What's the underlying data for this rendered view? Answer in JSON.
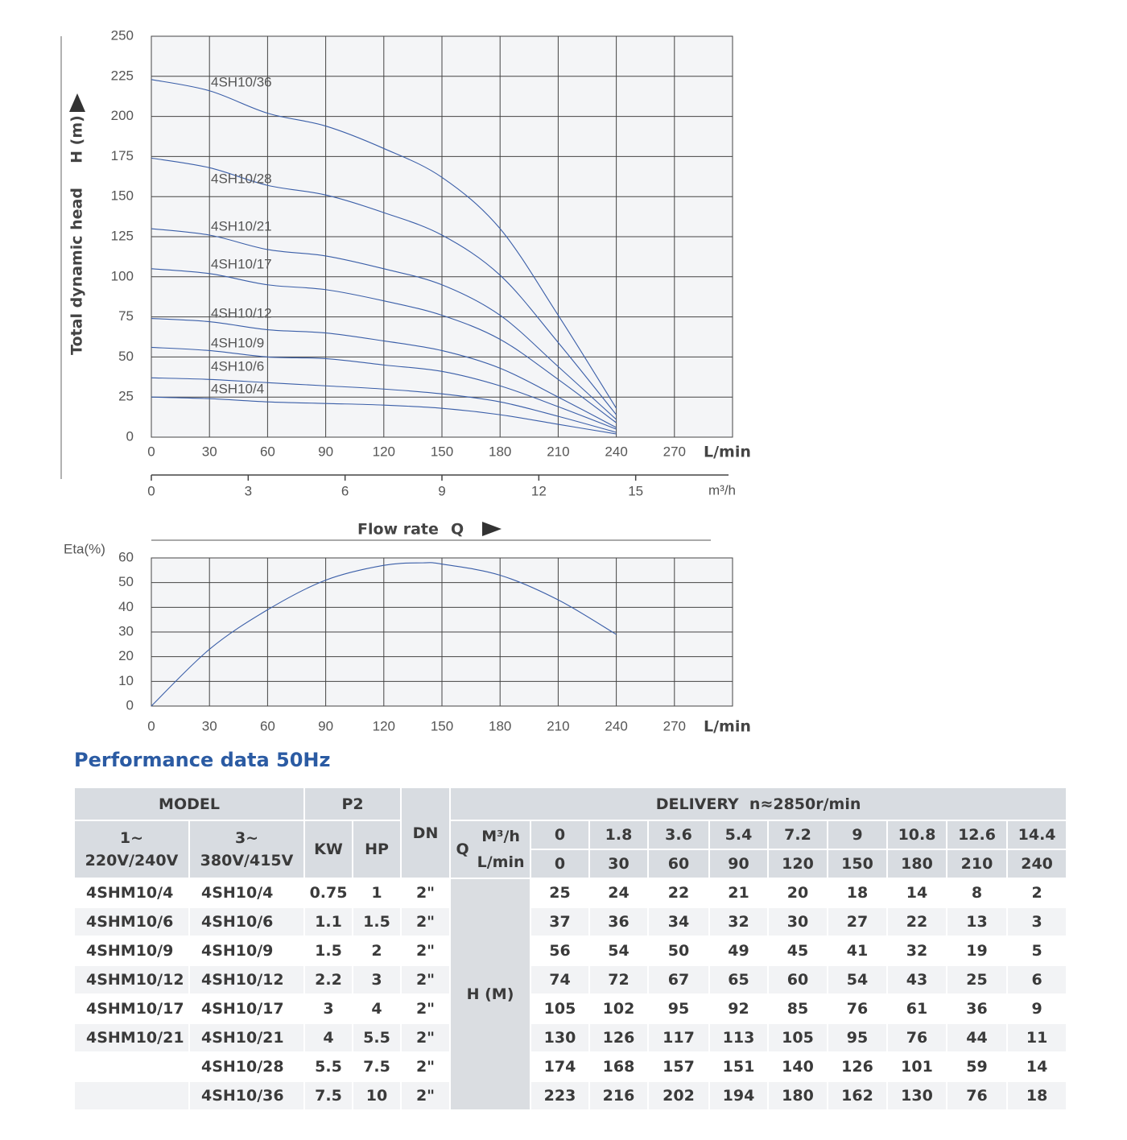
{
  "chart_data": [
    {
      "type": "line",
      "ylabel": "Total dynamic head",
      "ylabel_unit": "H (m)",
      "xlabel": "L/min",
      "x2label": "m³/h",
      "flow_label": "Flow rate",
      "flow_symbol": "Q",
      "xlim": [
        0,
        300
      ],
      "xticks": [
        0,
        30,
        60,
        90,
        120,
        150,
        180,
        210,
        240,
        270
      ],
      "x2lim": [
        0,
        18
      ],
      "x2ticks": [
        0,
        3,
        6,
        9,
        12,
        15
      ],
      "ylim": [
        0,
        250
      ],
      "yticks": [
        0,
        25,
        50,
        75,
        100,
        125,
        150,
        175,
        200,
        225,
        250
      ],
      "grid": true,
      "x": [
        0,
        30,
        60,
        90,
        120,
        150,
        180,
        210,
        240
      ],
      "series": [
        {
          "name": "4SH10/4",
          "color": "#3a5ea8",
          "values": [
            25,
            24,
            22,
            21,
            20,
            18,
            14,
            8,
            2
          ]
        },
        {
          "name": "4SH10/6",
          "color": "#3a5ea8",
          "values": [
            37,
            36,
            34,
            32,
            30,
            27,
            22,
            13,
            3
          ]
        },
        {
          "name": "4SH10/9",
          "color": "#3a5ea8",
          "values": [
            56,
            54,
            50,
            49,
            45,
            41,
            32,
            19,
            5
          ]
        },
        {
          "name": "4SH10/12",
          "color": "#3a5ea8",
          "values": [
            74,
            72,
            67,
            65,
            60,
            54,
            43,
            25,
            6
          ]
        },
        {
          "name": "4SH10/17",
          "color": "#3a5ea8",
          "values": [
            105,
            102,
            95,
            92,
            85,
            76,
            61,
            36,
            9
          ]
        },
        {
          "name": "4SH10/21",
          "color": "#3a5ea8",
          "values": [
            130,
            126,
            117,
            113,
            105,
            95,
            76,
            44,
            11
          ]
        },
        {
          "name": "4SH10/28",
          "color": "#3a5ea8",
          "values": [
            174,
            168,
            157,
            151,
            140,
            126,
            101,
            59,
            14
          ]
        },
        {
          "name": "4SH10/36",
          "color": "#3a5ea8",
          "values": [
            223,
            216,
            202,
            194,
            180,
            162,
            130,
            76,
            18
          ]
        }
      ]
    },
    {
      "type": "line",
      "ylabel": "Eta(%)",
      "xlabel": "L/min",
      "xlim": [
        0,
        300
      ],
      "xticks": [
        0,
        30,
        60,
        90,
        120,
        150,
        180,
        210,
        240,
        270
      ],
      "ylim": [
        0,
        60
      ],
      "yticks": [
        0,
        10,
        20,
        30,
        40,
        50,
        60
      ],
      "grid": true,
      "x": [
        0,
        30,
        60,
        90,
        120,
        140,
        150,
        180,
        210,
        240
      ],
      "series": [
        {
          "color": "#3a5ea8",
          "values": [
            0,
            23,
            39,
            51,
            57,
            58,
            57.5,
            53,
            43,
            29
          ]
        }
      ]
    }
  ],
  "table": {
    "title": "Performance data 50Hz",
    "header": {
      "model": "MODEL",
      "p2": "P2",
      "dn": "DN",
      "delivery": "DELIVERY  n≈2850r/min",
      "phase1": "1~",
      "voltage1": "220V/240V",
      "phase3": "3~",
      "voltage3": "380V/415V",
      "kw": "KW",
      "hp": "HP",
      "q": "Q",
      "m3h": "M³/h",
      "lmin": "L/min",
      "flow_m3h": [
        0,
        1.8,
        3.6,
        5.4,
        7.2,
        9,
        10.8,
        12.6,
        14.4
      ],
      "flow_lmin": [
        0,
        30,
        60,
        90,
        120,
        150,
        180,
        210,
        240
      ]
    },
    "h_label": "H (M)",
    "rows": [
      {
        "model_1ph": "4SHM10/4",
        "model_3ph": "4SH10/4",
        "kw": 0.75,
        "hp": 1,
        "dn": "2\"",
        "h": [
          25,
          24,
          22,
          21,
          20,
          18,
          14,
          8,
          2
        ]
      },
      {
        "model_1ph": "4SHM10/6",
        "model_3ph": "4SH10/6",
        "kw": 1.1,
        "hp": 1.5,
        "dn": "2\"",
        "h": [
          37,
          36,
          34,
          32,
          30,
          27,
          22,
          13,
          3
        ]
      },
      {
        "model_1ph": "4SHM10/9",
        "model_3ph": "4SH10/9",
        "kw": 1.5,
        "hp": 2,
        "dn": "2\"",
        "h": [
          56,
          54,
          50,
          49,
          45,
          41,
          32,
          19,
          5
        ]
      },
      {
        "model_1ph": "4SHM10/12",
        "model_3ph": "4SH10/12",
        "kw": 2.2,
        "hp": 3,
        "dn": "2\"",
        "h": [
          74,
          72,
          67,
          65,
          60,
          54,
          43,
          25,
          6
        ]
      },
      {
        "model_1ph": "4SHM10/17",
        "model_3ph": "4SH10/17",
        "kw": 3,
        "hp": 4,
        "dn": "2\"",
        "h": [
          105,
          102,
          95,
          92,
          85,
          76,
          61,
          36,
          9
        ]
      },
      {
        "model_1ph": "4SHM10/21",
        "model_3ph": "4SH10/21",
        "kw": 4,
        "hp": 5.5,
        "dn": "2\"",
        "h": [
          130,
          126,
          117,
          113,
          105,
          95,
          76,
          44,
          11
        ]
      },
      {
        "model_3ph": "4SH10/28",
        "kw": 5.5,
        "hp": 7.5,
        "dn": "2\"",
        "h": [
          174,
          168,
          157,
          151,
          140,
          126,
          101,
          59,
          14
        ]
      },
      {
        "model_3ph": "4SH10/36",
        "kw": 7.5,
        "hp": 10,
        "dn": "2\"",
        "h": [
          223,
          216,
          202,
          194,
          180,
          162,
          130,
          76,
          18
        ]
      }
    ]
  }
}
